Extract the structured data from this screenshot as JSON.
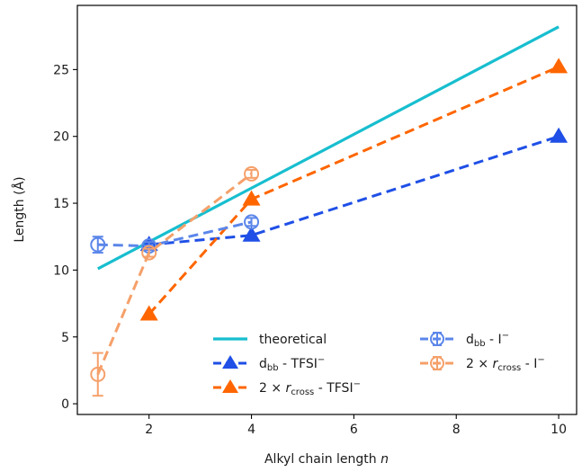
{
  "chart_data": {
    "type": "line",
    "xlabel": "Alkyl chain length n",
    "ylabel": "Length (Å)",
    "xlim": [
      0.6,
      10.35
    ],
    "ylim": [
      -0.8,
      29.8
    ],
    "xticks": [
      2,
      4,
      6,
      8,
      10
    ],
    "yticks": [
      0,
      5,
      10,
      15,
      20,
      25
    ],
    "grid": false,
    "legend_position": "lower right",
    "series": [
      {
        "name": "theoretical",
        "style": "solid",
        "marker": "none",
        "color": "#17becf",
        "x": [
          1,
          10
        ],
        "y": [
          10.1,
          28.2
        ]
      },
      {
        "name": "d_bb - TFSI⁻",
        "style": "dashed",
        "marker": "filled-triangle",
        "color": "#1f4fe6",
        "x": [
          2,
          4,
          10
        ],
        "y": [
          11.9,
          12.6,
          20.0
        ]
      },
      {
        "name": "2 × r_cross - TFSI⁻",
        "style": "dashed",
        "marker": "filled-triangle",
        "color": "#ff6600",
        "x": [
          2,
          4,
          10
        ],
        "y": [
          6.7,
          15.3,
          25.2
        ]
      },
      {
        "name": "d_bb - I⁻",
        "style": "dashed",
        "marker": "open-circle",
        "color": "#5b86ea",
        "x": [
          1,
          2,
          4
        ],
        "y": [
          11.9,
          11.8,
          13.6
        ],
        "yerr": [
          0.6,
          0.3,
          0.3
        ]
      },
      {
        "name": "2 × r_cross - I⁻",
        "style": "dashed",
        "marker": "open-circle",
        "color": "#f5a06a",
        "x": [
          1,
          2,
          4
        ],
        "y": [
          2.2,
          11.3,
          17.2
        ],
        "yerr": [
          1.6,
          0.3,
          0.3
        ]
      }
    ]
  }
}
